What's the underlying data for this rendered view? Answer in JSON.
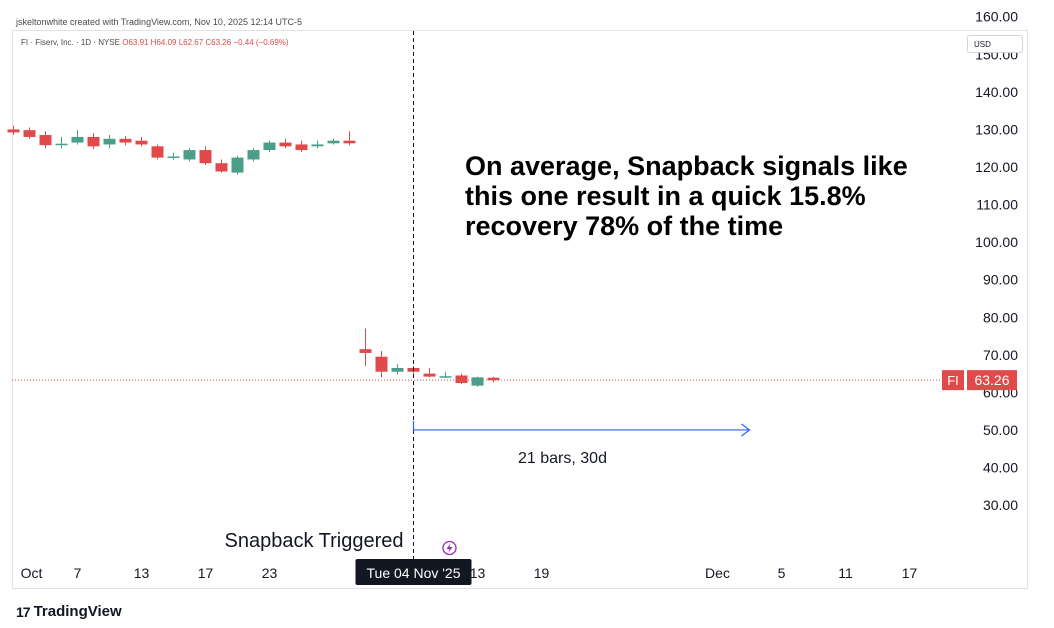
{
  "header": {
    "caption": "jskeltonwhite created with TradingView.com, Nov 10, 2025 12:14 UTC-5",
    "symbol_legend": "FI · Fiserv, Inc. · 1D · NYSE",
    "ohlc": "O63.91 H64.09 L62.67 C63.26 −0.44 (−0.69%)",
    "currency": "USD"
  },
  "footer": {
    "brand": "TradingView",
    "brand_logo": "17"
  },
  "colors": {
    "up": "#4a9e8a",
    "down": "#e04a4a",
    "arrow": "#2962ff",
    "price_line": "#e04a4a"
  },
  "chart_data": {
    "type": "candlestick",
    "symbol": "FI",
    "last_price": 63.26,
    "y_ticks": [
      30,
      40,
      50,
      60,
      70,
      80,
      90,
      100,
      110,
      120,
      130,
      140,
      150,
      160
    ],
    "y_tick_labels": [
      "30.00",
      "40.00",
      "50.00",
      "60.00",
      "70.00",
      "80.00",
      "90.00",
      "100.00",
      "110.00",
      "120.00",
      "130.00",
      "140.00",
      "150.00",
      "160.00"
    ],
    "x_ticks": [
      {
        "label": "Oct",
        "bar": 0
      },
      {
        "label": "7",
        "bar": 4
      },
      {
        "label": "13",
        "bar": 8
      },
      {
        "label": "17",
        "bar": 12
      },
      {
        "label": "23",
        "bar": 16
      },
      {
        "label": "13",
        "bar": 29
      },
      {
        "label": "19",
        "bar": 33
      },
      {
        "label": "Dec",
        "bar": 44
      },
      {
        "label": "5",
        "bar": 48
      },
      {
        "label": "11",
        "bar": 52
      },
      {
        "label": "17",
        "bar": 56
      }
    ],
    "crosshair": {
      "bar": 25,
      "label": "Tue 04 Nov '25"
    },
    "candles": [
      {
        "bar": 0,
        "o": 130.0,
        "h": 131.0,
        "l": 128.5,
        "c": 129.2
      },
      {
        "bar": 1,
        "o": 129.8,
        "h": 130.5,
        "l": 127.5,
        "c": 128.0
      },
      {
        "bar": 2,
        "o": 128.5,
        "h": 129.5,
        "l": 125.0,
        "c": 125.8
      },
      {
        "bar": 3,
        "o": 126.0,
        "h": 128.0,
        "l": 125.0,
        "c": 126.2
      },
      {
        "bar": 4,
        "o": 126.5,
        "h": 129.8,
        "l": 126.0,
        "c": 128.0
      },
      {
        "bar": 5,
        "o": 128.0,
        "h": 129.0,
        "l": 124.8,
        "c": 125.5
      },
      {
        "bar": 6,
        "o": 126.0,
        "h": 128.5,
        "l": 125.0,
        "c": 127.5
      },
      {
        "bar": 7,
        "o": 127.5,
        "h": 128.2,
        "l": 125.8,
        "c": 126.5
      },
      {
        "bar": 8,
        "o": 127.0,
        "h": 128.0,
        "l": 125.5,
        "c": 126.0
      },
      {
        "bar": 9,
        "o": 125.5,
        "h": 126.0,
        "l": 122.0,
        "c": 122.5
      },
      {
        "bar": 10,
        "o": 122.8,
        "h": 123.8,
        "l": 122.0,
        "c": 122.8
      },
      {
        "bar": 11,
        "o": 122.0,
        "h": 125.0,
        "l": 121.5,
        "c": 124.5
      },
      {
        "bar": 12,
        "o": 124.5,
        "h": 125.5,
        "l": 120.5,
        "c": 121.0
      },
      {
        "bar": 13,
        "o": 121.0,
        "h": 122.0,
        "l": 118.5,
        "c": 118.8
      },
      {
        "bar": 14,
        "o": 118.5,
        "h": 123.0,
        "l": 118.0,
        "c": 122.5
      },
      {
        "bar": 15,
        "o": 122.0,
        "h": 125.0,
        "l": 121.5,
        "c": 124.5
      },
      {
        "bar": 16,
        "o": 124.5,
        "h": 127.0,
        "l": 124.0,
        "c": 126.5
      },
      {
        "bar": 17,
        "o": 126.5,
        "h": 127.5,
        "l": 125.0,
        "c": 125.5
      },
      {
        "bar": 18,
        "o": 126.0,
        "h": 127.0,
        "l": 124.0,
        "c": 124.5
      },
      {
        "bar": 19,
        "o": 125.5,
        "h": 127.0,
        "l": 125.0,
        "c": 126.0
      },
      {
        "bar": 20,
        "o": 126.3,
        "h": 127.5,
        "l": 126.0,
        "c": 127.0
      },
      {
        "bar": 21,
        "o": 127.0,
        "h": 129.5,
        "l": 125.8,
        "c": 126.3
      },
      {
        "bar": 22,
        "o": 71.5,
        "h": 77.0,
        "l": 67.0,
        "c": 70.5
      },
      {
        "bar": 23,
        "o": 69.5,
        "h": 71.0,
        "l": 64.0,
        "c": 65.5
      },
      {
        "bar": 24,
        "o": 65.5,
        "h": 67.5,
        "l": 64.8,
        "c": 66.5
      },
      {
        "bar": 25,
        "o": 66.5,
        "h": 67.0,
        "l": 65.0,
        "c": 65.5
      },
      {
        "bar": 26,
        "o": 65.0,
        "h": 66.5,
        "l": 64.0,
        "c": 64.2
      },
      {
        "bar": 27,
        "o": 64.3,
        "h": 65.5,
        "l": 63.8,
        "c": 64.3
      },
      {
        "bar": 28,
        "o": 64.5,
        "h": 65.0,
        "l": 62.2,
        "c": 62.5
      },
      {
        "bar": 29,
        "o": 61.8,
        "h": 64.2,
        "l": 61.5,
        "c": 64.0
      },
      {
        "bar": 30,
        "o": 63.91,
        "h": 64.09,
        "l": 62.67,
        "c": 63.26
      }
    ],
    "annotations": {
      "headline": [
        "On average, Snapback signals like",
        "this one result in a quick 15.8%",
        "recovery 78% of the time"
      ],
      "trigger_label": "Snapback Triggered",
      "range_label": "21 bars, 30d",
      "range_from_bar": 25,
      "range_to_bar": 46,
      "range_price": 50.0
    }
  }
}
